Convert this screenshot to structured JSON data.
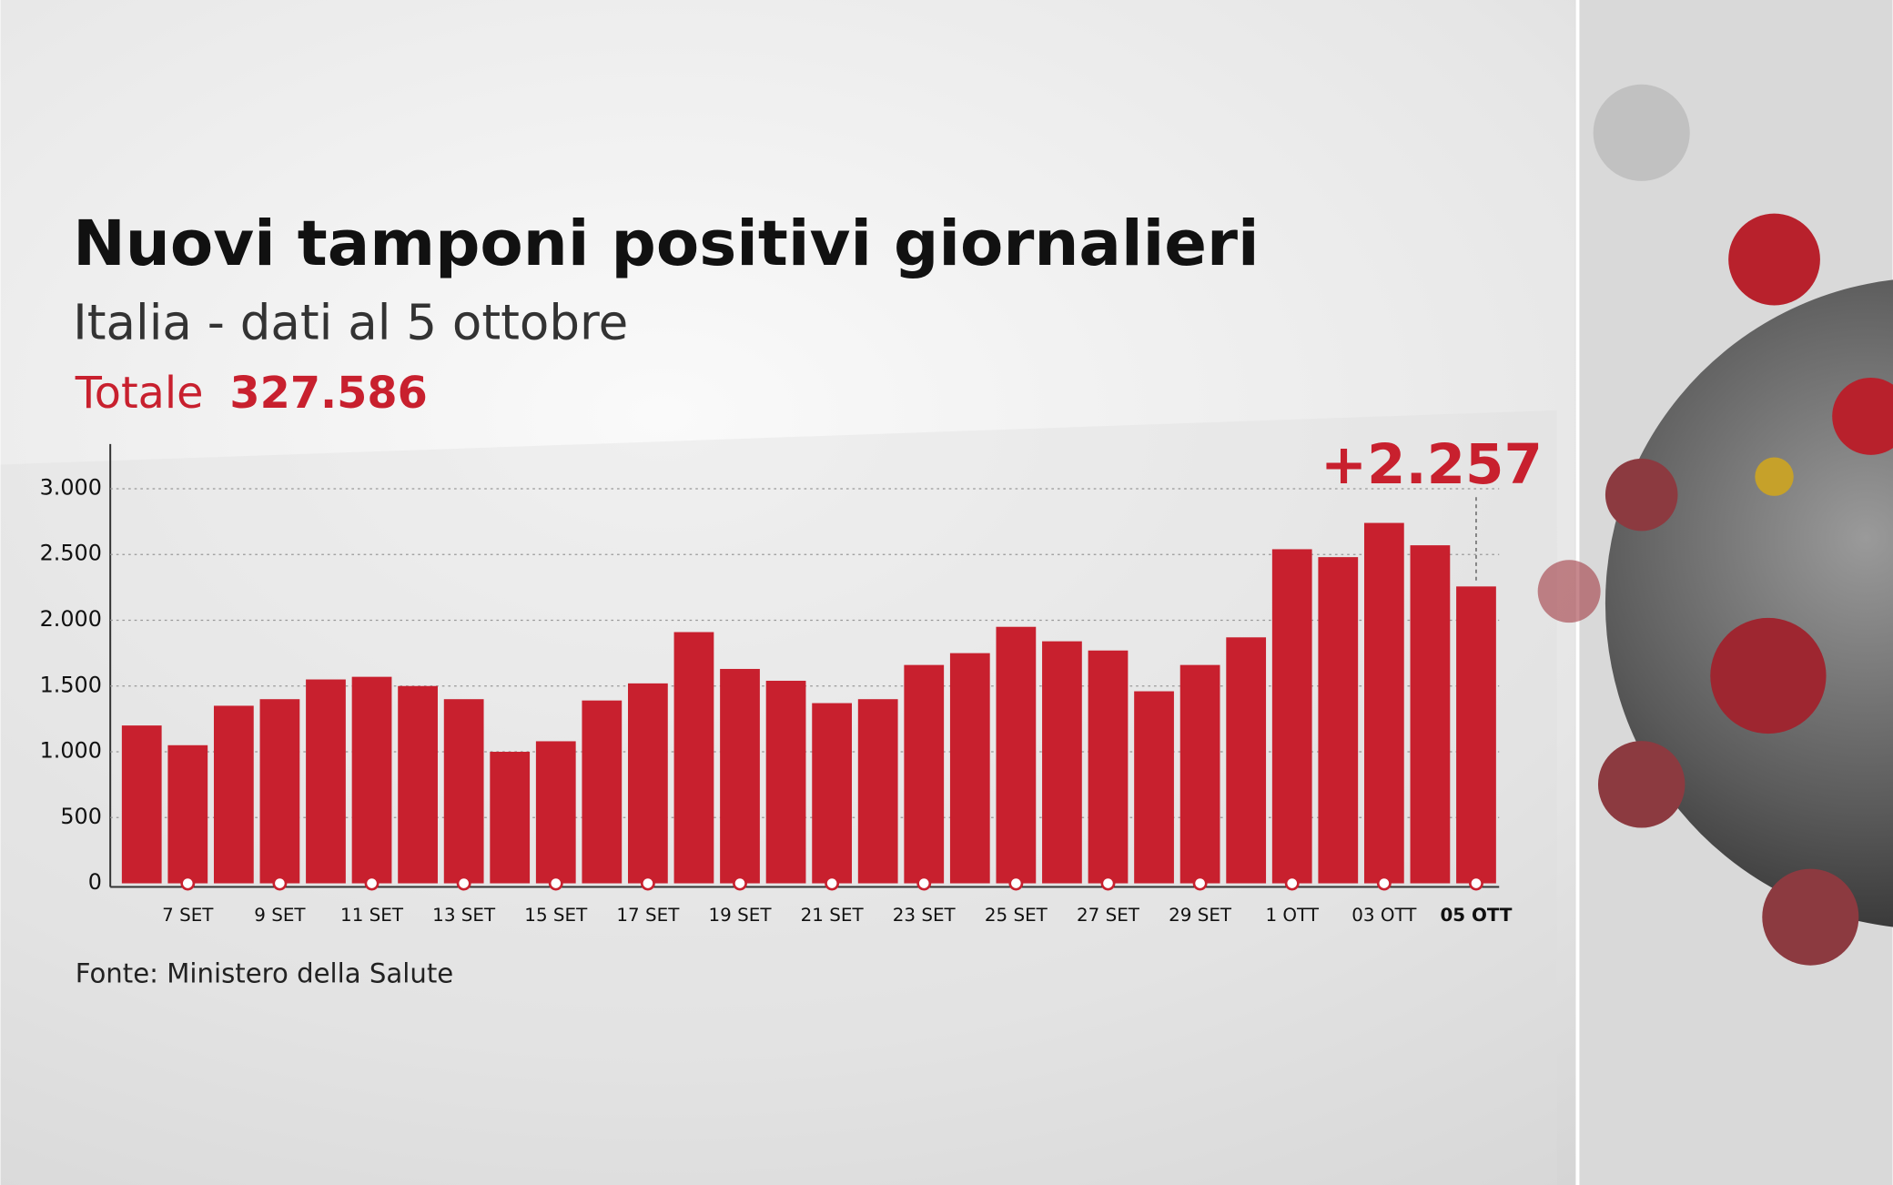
{
  "chart_data": {
    "type": "bar",
    "title": "Nuovi tamponi positivi giornalieri",
    "subtitle": "Italia - dati al 5 ottobre",
    "total_label": "Totale",
    "total_value": "327.586",
    "source": "Fonte: Ministero della Salute",
    "categories": [
      null,
      "7 SET",
      null,
      "9 SET",
      null,
      "11 SET",
      null,
      "13 SET",
      null,
      "15 SET",
      null,
      "17 SET",
      null,
      "19 SET",
      null,
      "21 SET",
      null,
      "23 SET",
      null,
      "25 SET",
      null,
      "27 SET",
      null,
      "29 SET",
      null,
      "1 OTT",
      null,
      "03 OTT",
      null,
      "05 OTT"
    ],
    "values": [
      1200,
      1050,
      1350,
      1400,
      1550,
      1570,
      1500,
      1400,
      1000,
      1080,
      1390,
      1520,
      1910,
      1630,
      1540,
      1370,
      1400,
      1660,
      1750,
      1950,
      1840,
      1770,
      1460,
      1660,
      1870,
      2540,
      2480,
      2740,
      2570,
      2257
    ],
    "value_labels": [
      null,
      null,
      null,
      null,
      null,
      null,
      null,
      null,
      null,
      null,
      null,
      null,
      null,
      null,
      null,
      null,
      null,
      null,
      null,
      null,
      null,
      null,
      null,
      null,
      null,
      null,
      null,
      null,
      null,
      "+2.257"
    ],
    "color": "#c8202e",
    "ylim": [
      0,
      3350
    ],
    "yticks": [
      0,
      500,
      {
        "value": 1000,
        "label": "1.000"
      },
      {
        "value": 1500,
        "label": "1.500"
      },
      {
        "value": 2000,
        "label": "2.000"
      },
      {
        "value": 2500,
        "label": "2.500"
      },
      {
        "value": 3000,
        "label": "3.000"
      }
    ],
    "grid": true
  }
}
